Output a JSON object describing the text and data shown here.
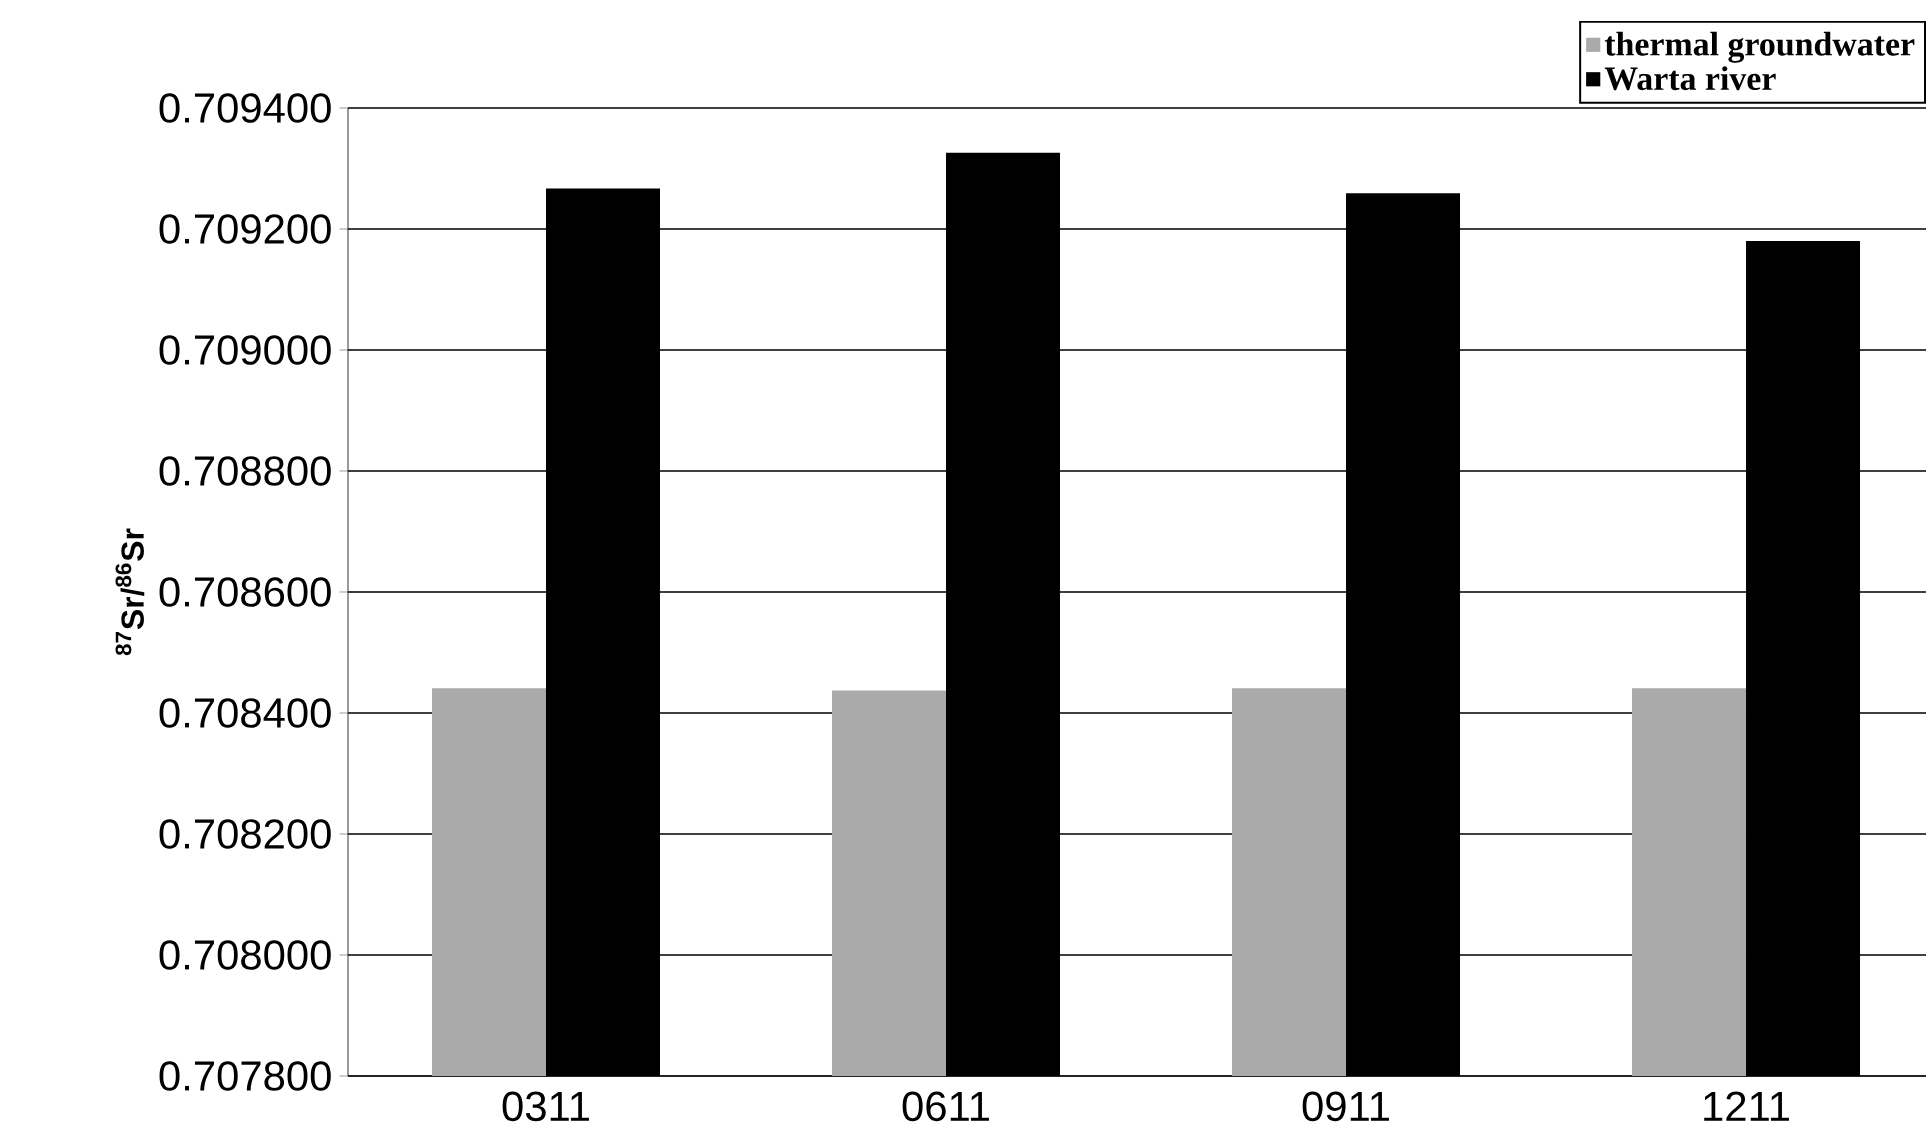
{
  "chart_data": {
    "type": "bar",
    "ylabel": "$^{87}$Sr/$^{86}$Sr",
    "categories": [
      "0311",
      "0611",
      "0911",
      "1211"
    ],
    "series": [
      {
        "name": "thermal groundwater",
        "color": "#aaaaaa",
        "values": [
          0.708441,
          0.708437,
          0.708441,
          0.708441
        ]
      },
      {
        "name": "Warta river",
        "color": "#000000",
        "values": [
          0.709267,
          0.709326,
          0.709259,
          0.70918
        ]
      }
    ],
    "ylim": [
      0.7078,
      0.7094
    ],
    "yticks": [
      {
        "value": 0.7078,
        "label": "0.707800"
      },
      {
        "value": 0.708,
        "label": "0.708000"
      },
      {
        "value": 0.7082,
        "label": "0.708200"
      },
      {
        "value": 0.7084,
        "label": "0.708400"
      },
      {
        "value": 0.7086,
        "label": "0.708600"
      },
      {
        "value": 0.7088,
        "label": "0.708800"
      },
      {
        "value": 0.709,
        "label": "0.709000"
      },
      {
        "value": 0.7092,
        "label": "0.709200"
      },
      {
        "value": 0.7094,
        "label": "0.709400"
      }
    ],
    "grid": "y",
    "legend": "top right"
  }
}
